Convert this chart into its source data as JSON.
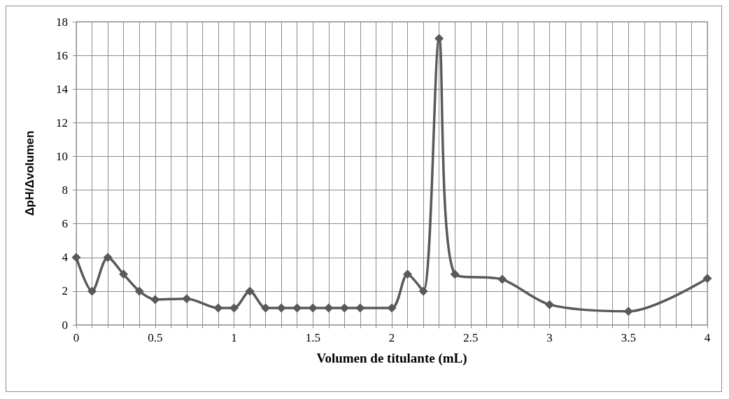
{
  "chart_data": {
    "type": "line",
    "xlabel": "Volumen de titulante (mL)",
    "ylabel": "ΔpH/Δvolumen",
    "x": [
      0,
      0.1,
      0.2,
      0.3,
      0.4,
      0.5,
      0.7,
      0.9,
      1,
      1.1,
      1.2,
      1.3,
      1.4,
      1.5,
      1.6,
      1.7,
      1.8,
      2,
      2.1,
      2.2,
      2.3,
      2.4,
      2.7,
      3,
      3.5,
      4
    ],
    "series": [
      {
        "color": "#595959",
        "values": [
          4,
          2,
          4,
          3,
          2,
          1.5,
          1.55,
          1,
          1,
          2,
          1,
          1,
          1,
          1,
          1,
          1,
          1,
          1,
          3,
          2,
          17,
          3,
          2.7,
          1.2,
          0.8,
          2.75
        ]
      }
    ],
    "xlim": [
      0,
      4
    ],
    "ylim": [
      0,
      18
    ],
    "xticks": [
      0,
      {
        "value": 0.1,
        "label": null
      },
      {
        "value": 0.2,
        "label": null
      },
      {
        "value": 0.3,
        "label": null
      },
      {
        "value": 0.4,
        "label": null
      },
      0.5,
      {
        "value": 0.6,
        "label": null
      },
      {
        "value": 0.7,
        "label": null
      },
      {
        "value": 0.8,
        "label": null
      },
      {
        "value": 0.9,
        "label": null
      },
      1,
      {
        "value": 1.1,
        "label": null
      },
      {
        "value": 1.2,
        "label": null
      },
      {
        "value": 1.3,
        "label": null
      },
      {
        "value": 1.4,
        "label": null
      },
      1.5,
      {
        "value": 1.6,
        "label": null
      },
      {
        "value": 1.7,
        "label": null
      },
      {
        "value": 1.8,
        "label": null
      },
      {
        "value": 1.9,
        "label": null
      },
      2,
      {
        "value": 2.1,
        "label": null
      },
      {
        "value": 2.2,
        "label": null
      },
      {
        "value": 2.3,
        "label": null
      },
      {
        "value": 2.4,
        "label": null
      },
      2.5,
      {
        "value": 2.6,
        "label": null
      },
      {
        "value": 2.7,
        "label": null
      },
      {
        "value": 2.8,
        "label": null
      },
      {
        "value": 2.9,
        "label": null
      },
      3,
      {
        "value": 3.1,
        "label": null
      },
      {
        "value": 3.2,
        "label": null
      },
      {
        "value": 3.3,
        "label": null
      },
      {
        "value": 3.4,
        "label": null
      },
      3.5,
      {
        "value": 3.6,
        "label": null
      },
      {
        "value": 3.7,
        "label": null
      },
      {
        "value": 3.8,
        "label": null
      },
      {
        "value": 3.9,
        "label": null
      },
      4
    ],
    "yticks": [
      0,
      2,
      4,
      6,
      8,
      10,
      12,
      14,
      16,
      18
    ],
    "grid": true,
    "marker": "diamond",
    "line_style": "solid"
  }
}
